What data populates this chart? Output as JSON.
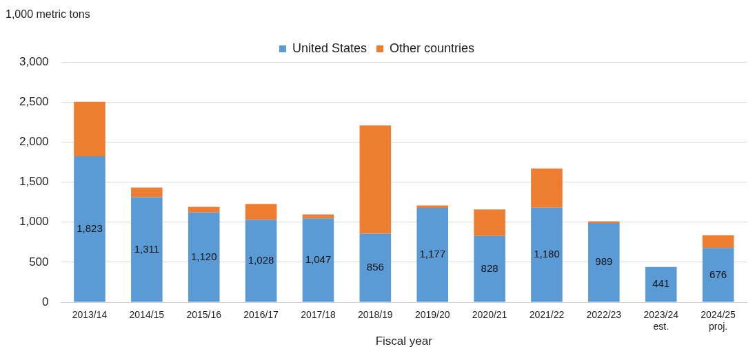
{
  "chart_data": {
    "type": "bar",
    "stacked": true,
    "ylabel": "1,000 metric tons",
    "xlabel": "Fiscal year",
    "categories": [
      "2013/14",
      "2014/15",
      "2015/16",
      "2016/17",
      "2017/18",
      "2018/19",
      "2019/20",
      "2020/21",
      "2021/22",
      "2022/23",
      "2023/24\nest.",
      "2024/25\nproj."
    ],
    "series": [
      {
        "name": "United States",
        "color": "#5b9bd5",
        "values": [
          1823,
          1311,
          1120,
          1028,
          1047,
          856,
          1177,
          828,
          1180,
          989,
          441,
          676
        ],
        "value_labels": [
          "1,823",
          "1,311",
          "1,120",
          "1,028",
          "1,047",
          "856",
          "1,177",
          "828",
          "1,180",
          "989",
          "441",
          "676"
        ]
      },
      {
        "name": "Other countries",
        "color": "#ed7d31",
        "values": [
          680,
          120,
          70,
          200,
          50,
          1350,
          30,
          330,
          490,
          20,
          0,
          160
        ]
      }
    ],
    "ylim": [
      0,
      3000
    ],
    "yticks": [
      0,
      500,
      {
        "value": 1000,
        "label": "1,000"
      },
      {
        "value": 1500,
        "label": "1,500"
      },
      {
        "value": 2000,
        "label": "2,000"
      },
      {
        "value": 2500,
        "label": "2,500"
      },
      {
        "value": 3000,
        "label": "3,000"
      }
    ],
    "grid": "y",
    "legend": "top"
  }
}
